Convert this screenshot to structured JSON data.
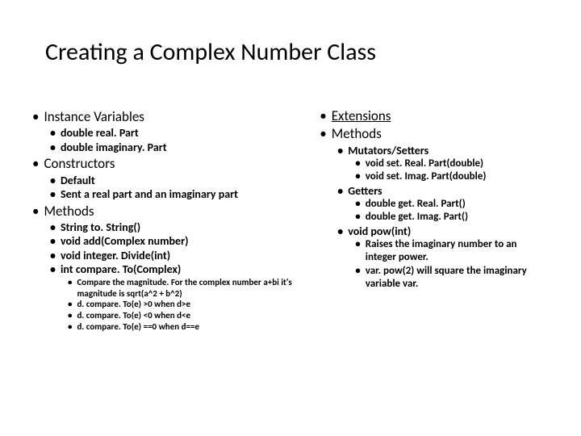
{
  "title": "Creating a Complex Number Class",
  "left": {
    "instVars": "Instance Variables",
    "iv1": "double real. Part",
    "iv2": "double imaginary. Part",
    "constructors": "Constructors",
    "c1": "Default",
    "c2": "Sent a real part and an imaginary part",
    "methods": "Methods",
    "m1": "String to. String()",
    "m2": "void add(Complex number)",
    "m3": "void integer. Divide(int)",
    "m4": "int compare. To(Complex)",
    "cmp1": "Compare the magnitude. For the complex number a+bi it's magnitude is sqrt(a^2 + b^2)",
    "cmp2": "d. compare. To(e) >0 when d>e",
    "cmp3": "d. compare. To(e) <0 when d<e",
    "cmp4": "d. compare. To(e) ==0 when d==e"
  },
  "right": {
    "ext": "Extensions",
    "methods": "Methods",
    "mut": "Mutators/Setters",
    "mut1": "void set. Real. Part(double)",
    "mut2": "void set. Imag. Part(double)",
    "get": "Getters",
    "get1": "double get. Real. Part()",
    "get2": "double get. Imag. Part()",
    "pow": "void pow(int)",
    "pow1": "Raises the imaginary number to an integer power.",
    "pow2": "var. pow(2) will square the imaginary variable var."
  },
  "bullet": "•"
}
